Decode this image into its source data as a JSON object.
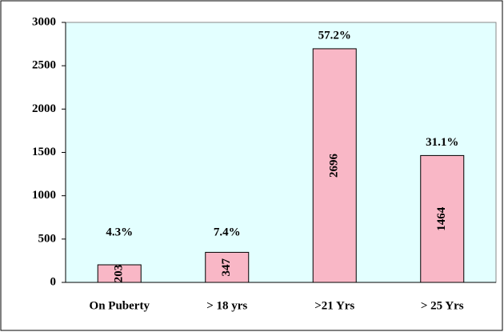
{
  "chart_data": {
    "type": "bar",
    "categories": [
      "On Puberty",
      "> 18 yrs",
      ">21 Yrs",
      "> 25 Yrs"
    ],
    "values": [
      203,
      347,
      2696,
      1464
    ],
    "annotations": [
      "4.3%",
      "7.4%",
      "57.2%",
      "31.1%"
    ],
    "color": "#f9b7c6",
    "ylim": [
      0,
      3000
    ],
    "yticks": [
      0,
      500,
      1000,
      1500,
      2000,
      2500,
      3000
    ],
    "grid": false
  }
}
